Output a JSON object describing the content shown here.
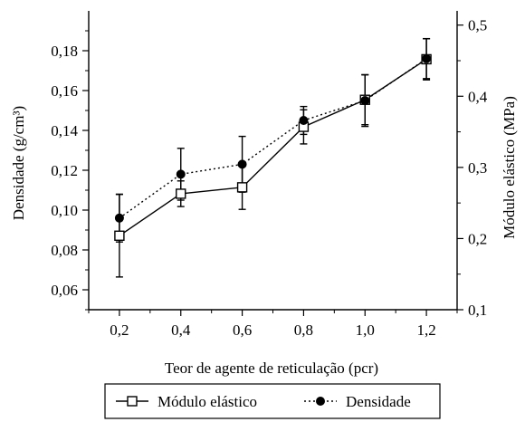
{
  "chart_data": {
    "type": "line",
    "x": [
      0.2,
      0.4,
      0.6,
      0.8,
      1.0,
      1.2
    ],
    "x_tick_labels": [
      "0,2",
      "0,4",
      "0,6",
      "0,8",
      "1,0",
      "1,2"
    ],
    "xlabel": "Teor de agente de reticulação (pcr)",
    "xlim": [
      0.1,
      1.3
    ],
    "y_left": {
      "label": "Densidade (g/cm³)",
      "lim": [
        0.05,
        0.2
      ],
      "ticks": [
        0.06,
        0.08,
        0.1,
        0.12,
        0.14,
        0.16,
        0.18
      ],
      "tick_labels": [
        "0,06",
        "0,08",
        "0,10",
        "0,12",
        "0,14",
        "0,16",
        "0,18"
      ]
    },
    "y_right": {
      "label": "Módulo elástico (MPa)",
      "lim": [
        0.1,
        0.52
      ],
      "ticks": [
        0.1,
        0.2,
        0.3,
        0.4,
        0.5
      ],
      "tick_labels": [
        "0,1",
        "0,2",
        "0,3",
        "0,4",
        "0,5"
      ]
    },
    "series": [
      {
        "name": "Módulo elástico",
        "axis": "right",
        "marker": "open-square",
        "line": "solid",
        "values": [
          0.204,
          0.263,
          0.272,
          0.357,
          0.395,
          0.452
        ],
        "error": [
          0.058,
          0.018,
          0.031,
          0.024,
          0.035,
          0.029
        ]
      },
      {
        "name": "Densidade",
        "axis": "left",
        "marker": "filled-circle",
        "line": "dotted",
        "values": [
          0.096,
          0.118,
          0.123,
          0.145,
          0.155,
          0.176
        ],
        "error": [
          0.012,
          0.013,
          0.014,
          0.007,
          0.013,
          0.01
        ]
      }
    ],
    "legend": "bottom-center",
    "grid": false
  }
}
